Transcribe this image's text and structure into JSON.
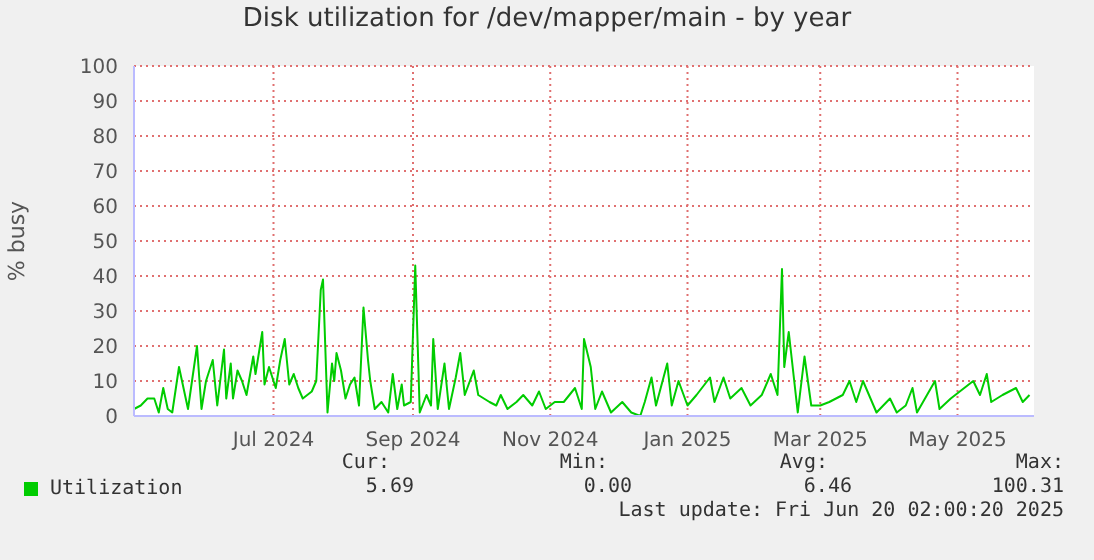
{
  "chart_data": {
    "type": "line",
    "title": "Disk utilization for /dev/mapper/main - by year",
    "ylabel": "% busy",
    "x": [
      "2024-04-30",
      "2024-05-03",
      "2024-05-06",
      "2024-05-09",
      "2024-05-11",
      "2024-05-13",
      "2024-05-15",
      "2024-05-17",
      "2024-05-20",
      "2024-05-22",
      "2024-05-24",
      "2024-05-28",
      "2024-05-30",
      "2024-06-01",
      "2024-06-04",
      "2024-06-06",
      "2024-06-09",
      "2024-06-10",
      "2024-06-12",
      "2024-06-13",
      "2024-06-15",
      "2024-06-17",
      "2024-06-19",
      "2024-06-22",
      "2024-06-23",
      "2024-06-26",
      "2024-06-27",
      "2024-06-29",
      "2024-07-02",
      "2024-07-04",
      "2024-07-06",
      "2024-07-08",
      "2024-07-10",
      "2024-07-12",
      "2024-07-14",
      "2024-07-18",
      "2024-07-20",
      "2024-07-22",
      "2024-07-23",
      "2024-07-25",
      "2024-07-27",
      "2024-07-28",
      "2024-07-29",
      "2024-07-31",
      "2024-08-02",
      "2024-08-04",
      "2024-08-06",
      "2024-08-08",
      "2024-08-10",
      "2024-08-12",
      "2024-08-13",
      "2024-08-15",
      "2024-08-18",
      "2024-08-21",
      "2024-08-23",
      "2024-08-25",
      "2024-08-27",
      "2024-08-28",
      "2024-08-31",
      "2024-09-02",
      "2024-09-04",
      "2024-09-07",
      "2024-09-09",
      "2024-09-10",
      "2024-09-12",
      "2024-09-15",
      "2024-09-17",
      "2024-09-20",
      "2024-09-22",
      "2024-09-24",
      "2024-09-28",
      "2024-09-30",
      "2024-10-05",
      "2024-10-08",
      "2024-10-10",
      "2024-10-13",
      "2024-10-17",
      "2024-10-20",
      "2024-10-24",
      "2024-10-27",
      "2024-10-30",
      "2024-11-03",
      "2024-11-07",
      "2024-11-12",
      "2024-11-15",
      "2024-11-16",
      "2024-11-19",
      "2024-11-21",
      "2024-11-24",
      "2024-11-28",
      "2024-12-03",
      "2024-12-07",
      "2024-12-11",
      "2024-12-13",
      "2024-12-16",
      "2024-12-18",
      "2024-12-23",
      "2024-12-25",
      "2024-12-28",
      "2025-01-01",
      "2025-01-05",
      "2025-01-11",
      "2025-01-13",
      "2025-01-17",
      "2025-01-20",
      "2025-01-25",
      "2025-01-29",
      "2025-02-03",
      "2025-02-07",
      "2025-02-10",
      "2025-02-12",
      "2025-02-13",
      "2025-02-15",
      "2025-02-19",
      "2025-02-22",
      "2025-02-25",
      "2025-03-01",
      "2025-03-05",
      "2025-03-11",
      "2025-03-14",
      "2025-03-17",
      "2025-03-20",
      "2025-03-26",
      "2025-04-01",
      "2025-04-04",
      "2025-04-08",
      "2025-04-11",
      "2025-04-13",
      "2025-04-21",
      "2025-04-23",
      "2025-04-28",
      "2025-05-04",
      "2025-05-08",
      "2025-05-11",
      "2025-05-14",
      "2025-05-16",
      "2025-05-21",
      "2025-05-27",
      "2025-05-30",
      "2025-06-02"
    ],
    "series": [
      {
        "name": "Utilization",
        "color": "#00cc00",
        "values": [
          2,
          3,
          5,
          5,
          1,
          8,
          2,
          1,
          14,
          8,
          2,
          20,
          2,
          10,
          16,
          3,
          19,
          5,
          15,
          5,
          13,
          10,
          6,
          17,
          12,
          24,
          9,
          14,
          8,
          16,
          22,
          9,
          12,
          8,
          5,
          7,
          10,
          36,
          39,
          1,
          15,
          10,
          18,
          13,
          5,
          9,
          11,
          3,
          31,
          16,
          10,
          2,
          4,
          1,
          12,
          2,
          9,
          3,
          4,
          43,
          1,
          6,
          3,
          22,
          2,
          15,
          2,
          11,
          18,
          6,
          13,
          6,
          4,
          3,
          6,
          2,
          4,
          6,
          3,
          7,
          2,
          4,
          4,
          8,
          2,
          22,
          14,
          2,
          7,
          1,
          4,
          1,
          0,
          4,
          11,
          3,
          15,
          3,
          10,
          3,
          6,
          11,
          4,
          11,
          5,
          8,
          3,
          6,
          12,
          6,
          42,
          14,
          24,
          1,
          17,
          3,
          3,
          4,
          6,
          10,
          4,
          10,
          1,
          5,
          1,
          3,
          8,
          1,
          10,
          2,
          5,
          8,
          10,
          6,
          12,
          4,
          6,
          8,
          4,
          6
        ]
      }
    ],
    "xlim": [
      "2024-04-30",
      "2025-06-04"
    ],
    "xticks": [
      {
        "value": "2024-07-01",
        "label": "Jul 2024"
      },
      {
        "value": "2024-09-01",
        "label": "Sep 2024"
      },
      {
        "value": "2024-11-01",
        "label": "Nov 2024"
      },
      {
        "value": "2025-01-01",
        "label": "Jan 2025"
      },
      {
        "value": "2025-03-01",
        "label": "Mar 2025"
      },
      {
        "value": "2025-05-01",
        "label": "May 2025"
      }
    ],
    "ylim": [
      0,
      100
    ],
    "yticks": [
      0,
      10,
      20,
      30,
      40,
      50,
      60,
      70,
      80,
      90,
      100
    ],
    "grid": true,
    "legend": "bottom left",
    "marker": "none",
    "line_style": "solid",
    "annotations": [
      "Cur:",
      "5.69",
      "Min:",
      "0.00",
      "Avg:",
      "6.46",
      "Max:",
      "100.31",
      "Last update: Fri Jun 20 02:00:20 2025"
    ]
  }
}
